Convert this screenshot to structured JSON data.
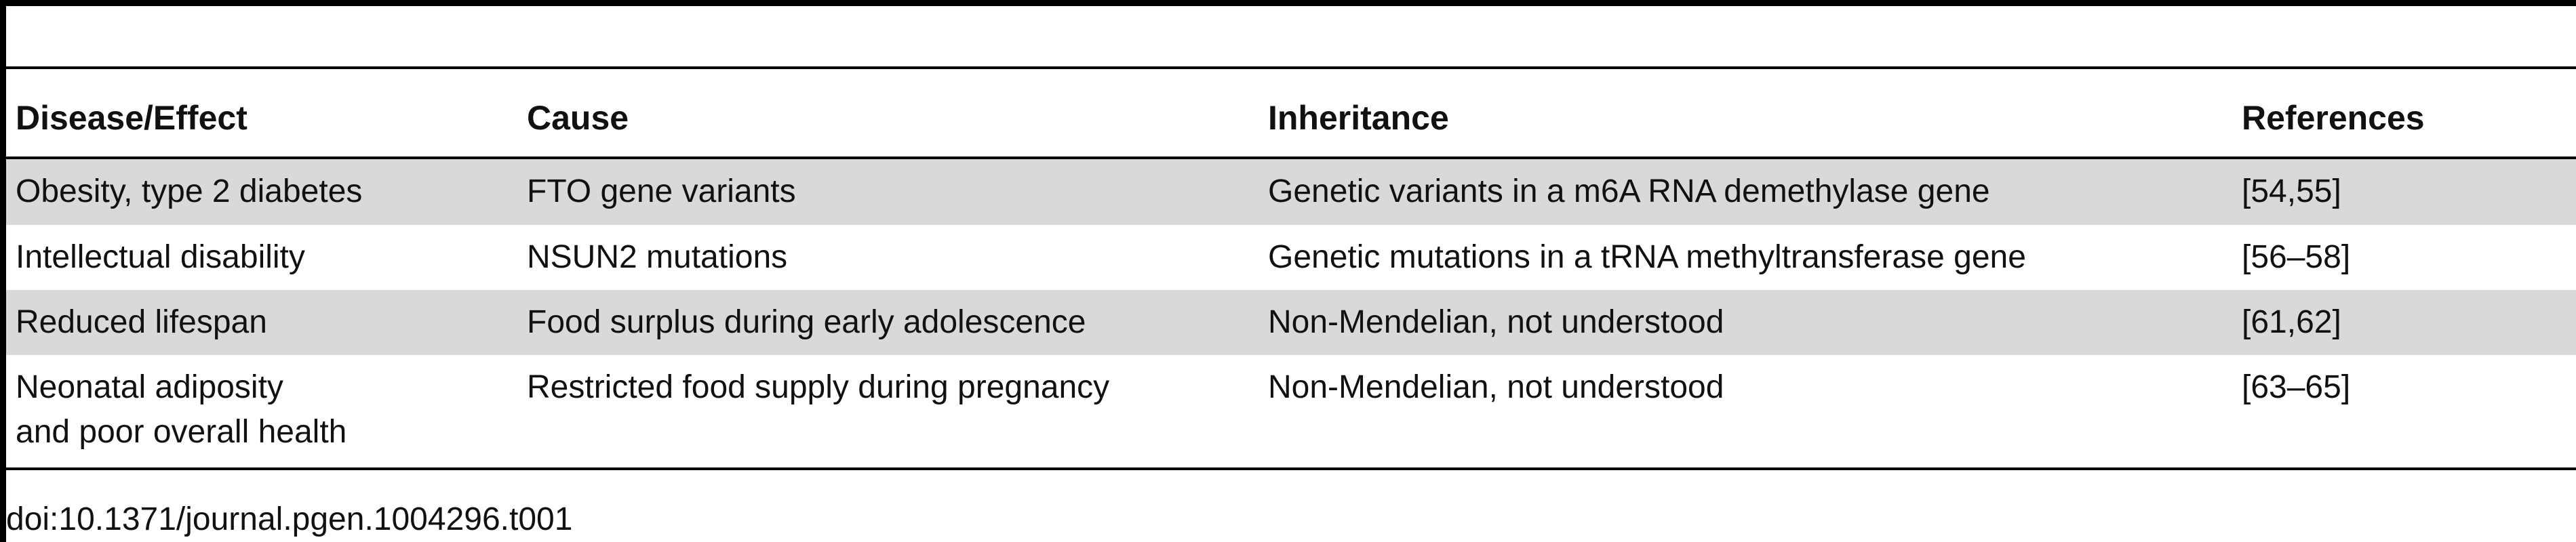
{
  "table": {
    "headers": [
      "Disease/Effect",
      "Cause",
      "Inheritance",
      "References"
    ],
    "rows": [
      {
        "disease_lines": [
          "Obesity, type 2 diabetes"
        ],
        "cause": "FTO gene variants",
        "inheritance": "Genetic variants in a m6A RNA demethylase gene",
        "references": "[54,55]"
      },
      {
        "disease_lines": [
          "Intellectual disability"
        ],
        "cause": "NSUN2 mutations",
        "inheritance": "Genetic mutations in a tRNA methyltransferase gene",
        "references": "[56–58]"
      },
      {
        "disease_lines": [
          "Reduced lifespan"
        ],
        "cause": "Food surplus during early adolescence",
        "inheritance": "Non-Mendelian, not understood",
        "references": "[61,62]"
      },
      {
        "disease_lines": [
          "Neonatal adiposity",
          "and poor overall health"
        ],
        "cause": "Restricted food supply during pregnancy",
        "inheritance": "Non-Mendelian, not understood",
        "references": "[63–65]"
      }
    ]
  },
  "footnote": "doi:10.1371/journal.pgen.1004296.t001",
  "colors": {
    "shaded_row": "#d9d9d9",
    "rule": "#000000",
    "text": "#111111"
  }
}
